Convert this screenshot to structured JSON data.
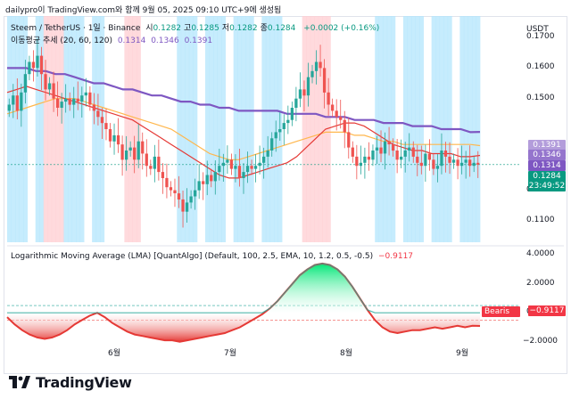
{
  "header": {
    "text": "dailypro이 TradingView.com와 함께 9월 05, 2025 09:10 UTC+9에 생성됨"
  },
  "main_pane": {
    "symbol": "Steem / TetherUS · 1일 · Binance",
    "ohlc": [
      {
        "k": "시",
        "v": "0.1282"
      },
      {
        "k": "고",
        "v": "0.1285"
      },
      {
        "k": "저",
        "v": "0.1282"
      },
      {
        "k": "종",
        "v": "0.1284"
      }
    ],
    "change": "+0.0002 (+0.16%)",
    "ma_label": "이동평균 추세 (20, 60, 120)",
    "ma_values": [
      "0.1314",
      "0.1346",
      "0.1391"
    ],
    "currency": "USDT",
    "y_ticks": [
      "0.1700",
      "0.1600",
      "0.1500",
      "0.1200",
      "0.1100"
    ],
    "tags": [
      {
        "text": "0.1391",
        "color": "#b39ddb"
      },
      {
        "text": "0.1346",
        "color": "#9575cd"
      },
      {
        "text": "0.1314",
        "color": "#7e57c2"
      },
      {
        "text": "0.1284",
        "color": "#089981"
      },
      {
        "text": "23:49:52",
        "color": "#089981"
      }
    ]
  },
  "lma_pane": {
    "title": "Logarithmic Moving Average (LMA) [QuantAlgo] (Default, 100, 2.5, EMA, 10, 1.2, 0.5, -0.5)",
    "value": "−0.9117",
    "y_ticks": [
      "4.0000",
      "2.0000",
      "0.0000",
      "−2.0000"
    ],
    "badge": "Bearis",
    "tag": "−0.9117"
  },
  "x_ticks": [
    "6월",
    "7월",
    "8월",
    "9월"
  ],
  "brand": {
    "name": "TradingView"
  },
  "colors": {
    "up": "#26a69a",
    "down": "#ef5350",
    "bg_bull": "#b3e5fc",
    "bg_bear": "#ffcdd2",
    "ma20": "#e53935",
    "ma60": "#ffb74d",
    "ma120": "#7e57c2"
  },
  "chart_data": [
    {
      "type": "candlestick",
      "x_range": [
        "2025-05-01",
        "2025-09-05"
      ],
      "ylim": [
        0.103,
        0.177
      ],
      "last": {
        "open": 0.1282,
        "high": 0.1285,
        "low": 0.1282,
        "close": 0.1284
      },
      "closes": [
        0.148,
        0.151,
        0.146,
        0.152,
        0.158,
        0.162,
        0.16,
        0.164,
        0.158,
        0.153,
        0.155,
        0.15,
        0.147,
        0.149,
        0.15,
        0.148,
        0.15,
        0.149,
        0.151,
        0.152,
        0.148,
        0.146,
        0.144,
        0.142,
        0.14,
        0.136,
        0.138,
        0.135,
        0.13,
        0.133,
        0.134,
        0.13,
        0.136,
        0.132,
        0.128,
        0.127,
        0.131,
        0.126,
        0.124,
        0.121,
        0.12,
        0.119,
        0.117,
        0.113,
        0.116,
        0.118,
        0.12,
        0.123,
        0.122,
        0.125,
        0.123,
        0.126,
        0.128,
        0.129,
        0.13,
        0.127,
        0.128,
        0.124,
        0.126,
        0.128,
        0.127,
        0.128,
        0.129,
        0.131,
        0.133,
        0.137,
        0.139,
        0.14,
        0.142,
        0.143,
        0.147,
        0.15,
        0.153,
        0.151,
        0.157,
        0.159,
        0.162,
        0.16,
        0.152,
        0.148,
        0.146,
        0.144,
        0.143,
        0.139,
        0.134,
        0.131,
        0.128,
        0.129,
        0.131,
        0.13,
        0.133,
        0.134,
        0.132,
        0.136,
        0.135,
        0.133,
        0.13,
        0.131,
        0.133,
        0.134,
        0.131,
        0.129,
        0.128,
        0.132,
        0.13,
        0.127,
        0.128,
        0.133,
        0.131,
        0.129,
        0.13,
        0.128,
        0.129,
        0.13,
        0.128,
        0.129,
        0.1284
      ],
      "series": [
        {
          "name": "20",
          "values": [
            0.152,
            0.153,
            0.154,
            0.153,
            0.152,
            0.151,
            0.15,
            0.149,
            0.148,
            0.147,
            0.146,
            0.145,
            0.144,
            0.143,
            0.141,
            0.139,
            0.137,
            0.135,
            0.133,
            0.131,
            0.129,
            0.127,
            0.125,
            0.124,
            0.124,
            0.125,
            0.126,
            0.127,
            0.128,
            0.129,
            0.131,
            0.134,
            0.137,
            0.14,
            0.141,
            0.142,
            0.142,
            0.141,
            0.139,
            0.137,
            0.135,
            0.134,
            0.133,
            0.133,
            0.132,
            0.132,
            0.132,
            0.131,
            0.131,
            0.1314
          ]
        },
        {
          "name": "60",
          "values": [
            0.145,
            0.146,
            0.147,
            0.148,
            0.149,
            0.15,
            0.15,
            0.15,
            0.149,
            0.148,
            0.147,
            0.146,
            0.145,
            0.144,
            0.143,
            0.142,
            0.141,
            0.14,
            0.138,
            0.136,
            0.134,
            0.132,
            0.131,
            0.13,
            0.13,
            0.131,
            0.132,
            0.133,
            0.134,
            0.135,
            0.136,
            0.137,
            0.138,
            0.139,
            0.139,
            0.139,
            0.138,
            0.138,
            0.137,
            0.136,
            0.136,
            0.135,
            0.135,
            0.135,
            0.135,
            0.135,
            0.135,
            0.135,
            0.135,
            0.1346
          ]
        },
        {
          "name": "120",
          "values": [
            0.16,
            0.16,
            0.16,
            0.159,
            0.159,
            0.158,
            0.158,
            0.157,
            0.156,
            0.155,
            0.155,
            0.154,
            0.153,
            0.153,
            0.152,
            0.151,
            0.151,
            0.15,
            0.149,
            0.149,
            0.148,
            0.148,
            0.147,
            0.147,
            0.146,
            0.146,
            0.146,
            0.146,
            0.146,
            0.145,
            0.145,
            0.145,
            0.145,
            0.144,
            0.144,
            0.144,
            0.143,
            0.143,
            0.143,
            0.142,
            0.142,
            0.142,
            0.141,
            0.141,
            0.141,
            0.14,
            0.14,
            0.14,
            0.139,
            0.1391
          ]
        }
      ]
    },
    {
      "type": "area",
      "ylim": [
        -3.0,
        4.5
      ],
      "values": [
        -0.3,
        -0.8,
        -1.2,
        -1.5,
        -1.7,
        -1.8,
        -1.7,
        -1.5,
        -1.2,
        -0.8,
        -0.5,
        -0.2,
        0.0,
        -0.3,
        -0.7,
        -1.0,
        -1.3,
        -1.5,
        -1.6,
        -1.7,
        -1.8,
        -1.9,
        -1.9,
        -2.0,
        -1.9,
        -1.8,
        -1.7,
        -1.6,
        -1.5,
        -1.4,
        -1.2,
        -1.0,
        -0.7,
        -0.4,
        -0.1,
        0.3,
        0.8,
        1.4,
        2.0,
        2.6,
        3.0,
        3.3,
        3.4,
        3.3,
        3.0,
        2.5,
        1.8,
        1.0,
        0.2,
        -0.5,
        -1.0,
        -1.3,
        -1.4,
        -1.3,
        -1.2,
        -1.2,
        -1.1,
        -1.0,
        -1.1,
        -1.0,
        -0.9,
        -1.0,
        -0.9,
        -0.9117
      ]
    }
  ]
}
